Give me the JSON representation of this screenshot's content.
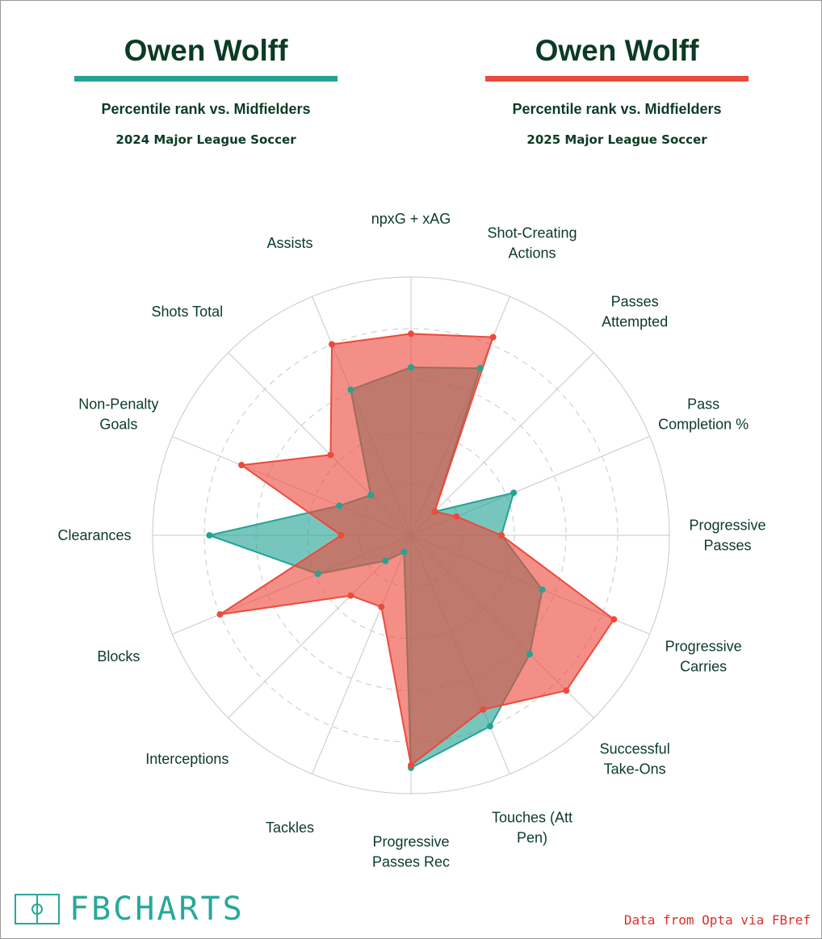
{
  "header": {
    "left": {
      "player": "Owen Wolff",
      "subtitle": "Percentile rank vs. Midfielders",
      "season": "2024 Major League Soccer",
      "color": "#24a394"
    },
    "right": {
      "player": "Owen Wolff",
      "subtitle": "Percentile rank vs. Midfielders",
      "season": "2025 Major League Soccer",
      "color": "#ec4a3c"
    }
  },
  "chart_data": {
    "type": "radar",
    "scale": [
      0,
      100
    ],
    "rings": [
      20,
      40,
      60,
      80,
      100
    ],
    "axes": [
      {
        "label": [
          "npxG + xAG"
        ]
      },
      {
        "label": [
          "Shot-Creating",
          "Actions"
        ]
      },
      {
        "label": [
          "Passes",
          "Attempted"
        ]
      },
      {
        "label": [
          "Pass",
          "Completion %"
        ]
      },
      {
        "label": [
          "Progressive",
          "Passes"
        ]
      },
      {
        "label": [
          "Progressive",
          "Carries"
        ]
      },
      {
        "label": [
          "Successful",
          "Take-Ons"
        ]
      },
      {
        "label": [
          "Touches (Att",
          "Pen)"
        ]
      },
      {
        "label": [
          "Progressive",
          "Passes Rec"
        ]
      },
      {
        "label": [
          "Tackles"
        ]
      },
      {
        "label": [
          "Interceptions"
        ]
      },
      {
        "label": [
          "Blocks"
        ]
      },
      {
        "label": [
          "Clearances"
        ]
      },
      {
        "label": [
          "Non-Penalty",
          "Goals"
        ]
      },
      {
        "label": [
          "Shots Total"
        ]
      },
      {
        "label": [
          "Assists"
        ]
      }
    ],
    "series": [
      {
        "name": "2024 Major League Soccer",
        "color": "#24a394",
        "values": [
          65,
          70,
          13,
          43,
          35,
          55,
          65,
          80,
          90,
          7,
          14,
          39,
          78,
          30,
          22,
          61
        ]
      },
      {
        "name": "2025 Major League Soccer",
        "color": "#ec4a3c",
        "values": [
          78,
          83,
          13,
          19,
          35,
          85,
          85,
          73,
          89,
          30,
          33,
          80,
          27,
          71,
          44,
          80
        ]
      }
    ]
  },
  "footer": {
    "brand": "FBCHARTS",
    "credit": "Data from Opta via FBref"
  }
}
